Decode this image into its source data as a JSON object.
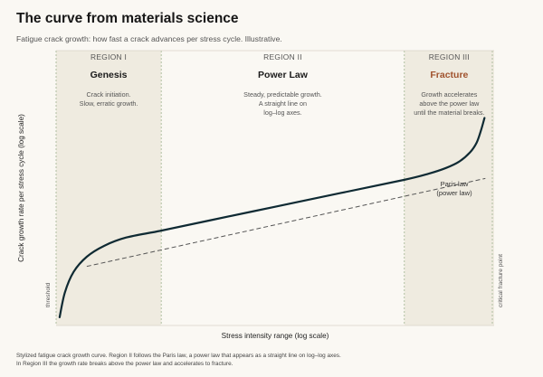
{
  "header": {
    "title": "The curve from materials science",
    "subtitle": "Fatigue crack growth: how fast a crack advances per stress cycle. Illustrative."
  },
  "caption": {
    "line1": "Stylized fatigue crack growth curve. Region II follows the Paris law, a power law that appears as a straight line on log–log axes.",
    "line2": "In Region III the growth rate breaks above the power law and accelerates to fracture."
  },
  "colors": {
    "background": "#faf8f3",
    "shaded_region": "#efebe0",
    "curve": "#0f2a33",
    "fracture_accent": "#a0522d",
    "divider": "#9fb38f",
    "dashed_fit": "#555555"
  },
  "chart_data": {
    "type": "line",
    "xlabel": "Stress intensity range  (log scale)",
    "ylabel": "Crack growth rate per stress cycle  (log scale)",
    "x_scale": "log",
    "y_scale": "log",
    "xlim": [
      0,
      1
    ],
    "ylim": [
      0,
      1
    ],
    "grid": false,
    "regions": [
      {
        "tag": "REGION I",
        "name": "Genesis",
        "desc": [
          "Crack initiation.",
          "Slow, erratic growth."
        ],
        "x_start": 0,
        "x_end": 0.24,
        "shaded": true
      },
      {
        "tag": "REGION II",
        "name": "Power Law",
        "desc": [
          "Steady, predictable growth.",
          "A straight line on",
          "log–log axes."
        ],
        "x_start": 0.24,
        "x_end": 0.795,
        "shaded": false
      },
      {
        "tag": "REGION III",
        "name": "Fracture",
        "desc": [
          "Growth accelerates",
          "above the power law",
          "until the material breaks."
        ],
        "x_start": 0.795,
        "x_end": 1,
        "shaded": true
      }
    ],
    "vertical_markers": [
      {
        "label": "threshold",
        "x": 0.0
      },
      {
        "label": "critical fracture point",
        "x": 1.0
      }
    ],
    "series": [
      {
        "x": [
          0.008,
          0.02,
          0.04,
          0.07,
          0.11,
          0.16,
          0.24,
          0.35,
          0.5,
          0.65,
          0.795,
          0.85,
          0.89,
          0.92,
          0.945,
          0.96,
          0.97,
          0.978
        ],
        "y": [
          0.03,
          0.12,
          0.195,
          0.25,
          0.29,
          0.32,
          0.345,
          0.382,
          0.432,
          0.482,
          0.53,
          0.552,
          0.573,
          0.596,
          0.63,
          0.665,
          0.71,
          0.755
        ]
      }
    ],
    "annotations": [
      {
        "label": [
          "Paris law",
          "(power law)"
        ],
        "kind": "dashed-fit",
        "x": [
          0.07,
          0.98
        ],
        "y": [
          0.215,
          0.535
        ]
      }
    ]
  }
}
